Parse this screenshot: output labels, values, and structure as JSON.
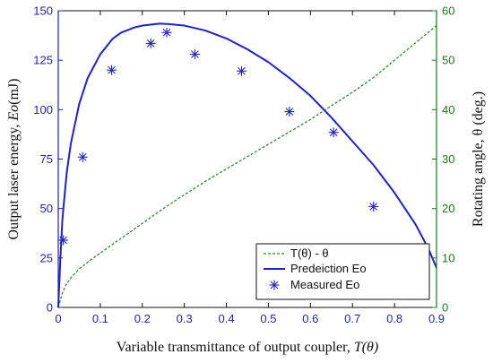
{
  "chart_data": {
    "type": "line",
    "title": "",
    "xlabel_prefix": "Variable transmittance of output coupler, ",
    "xlabel_symbol": "T(θ)",
    "ylabel_left_prefix": "Output laser energy, ",
    "ylabel_left_symbol": "Eo",
    "ylabel_left_suffix": "(mJ)",
    "ylabel_right": "Rotating angle, θ (deg.)",
    "xlim": [
      0,
      0.9
    ],
    "ylim_left": [
      0,
      150
    ],
    "ylim_right": [
      0,
      60
    ],
    "x_ticks": [
      "0",
      "0.1",
      "0.2",
      "0.3",
      "0.4",
      "0.5",
      "0.6",
      "0.7",
      "0.8",
      "0.9"
    ],
    "y_left_ticks": [
      "0",
      "25",
      "50",
      "75",
      "100",
      "125",
      "150"
    ],
    "y_right_ticks": [
      "0",
      "10",
      "20",
      "30",
      "40",
      "50",
      "60"
    ],
    "grid": false,
    "legend_position": "bottom-right",
    "colors": {
      "prediction": "#1f1fd6",
      "measured": "#2424c8",
      "angle": "#2e8b2e",
      "left_axis": "#1f1fbf",
      "right_axis": "#1f7a1f"
    },
    "series": [
      {
        "name": "T(θ) -  θ",
        "axis": "right",
        "style": "dashed",
        "x": [
          0,
          0.005,
          0.01,
          0.02,
          0.03,
          0.05,
          0.08,
          0.1,
          0.13,
          0.15,
          0.2,
          0.25,
          0.3,
          0.35,
          0.4,
          0.45,
          0.5,
          0.55,
          0.6,
          0.65,
          0.7,
          0.75,
          0.8,
          0.85,
          0.9
        ],
        "y": [
          0,
          1.5,
          3.0,
          4.8,
          6.0,
          7.8,
          9.8,
          11.0,
          12.8,
          14.0,
          17.0,
          20.0,
          22.8,
          25.5,
          28.0,
          30.5,
          33.0,
          35.5,
          38.0,
          40.8,
          43.5,
          46.5,
          50.0,
          53.5,
          57.0
        ]
      },
      {
        "name": "Predeiction Eo",
        "axis": "left",
        "style": "solid",
        "x": [
          0,
          0.005,
          0.01,
          0.02,
          0.03,
          0.05,
          0.07,
          0.1,
          0.13,
          0.15,
          0.18,
          0.2,
          0.22,
          0.24,
          0.26,
          0.3,
          0.35,
          0.4,
          0.45,
          0.5,
          0.55,
          0.6,
          0.65,
          0.7,
          0.75,
          0.8,
          0.85,
          0.88,
          0.9
        ],
        "y": [
          0,
          25,
          45,
          68,
          83,
          103,
          116,
          128,
          136,
          139,
          141.5,
          142.5,
          143,
          143.5,
          143.3,
          142.5,
          140,
          136,
          130.5,
          124,
          116,
          107,
          96,
          84,
          72,
          58,
          42,
          30,
          20
        ]
      },
      {
        "name": "Measured Eo",
        "axis": "left",
        "style": "markers",
        "x": [
          0.012,
          0.058,
          0.127,
          0.22,
          0.258,
          0.325,
          0.436,
          0.55,
          0.655,
          0.75,
          0.855
        ],
        "y": [
          34,
          76,
          120,
          133.5,
          139,
          128,
          119.5,
          99,
          88.5,
          51,
          30
        ]
      }
    ]
  }
}
